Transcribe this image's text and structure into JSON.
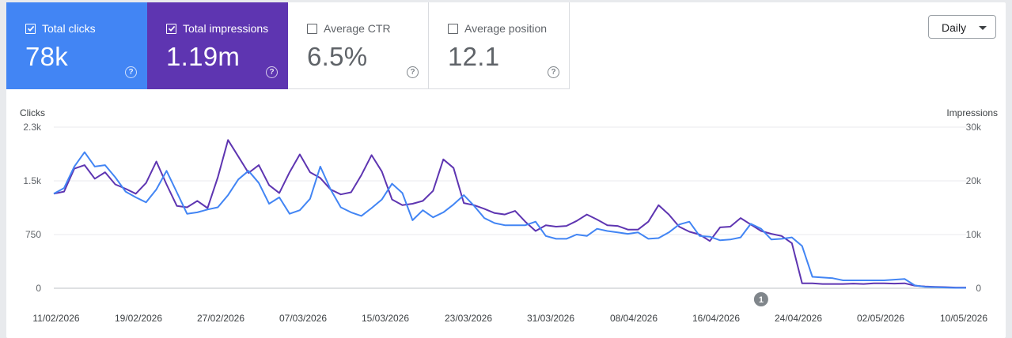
{
  "metrics": [
    {
      "label": "Total clicks",
      "value": "78k",
      "checked": true,
      "bg": "#4285f4",
      "fg": "#ffffff"
    },
    {
      "label": "Total impressions",
      "value": "1.19m",
      "checked": true,
      "bg": "#5e35b1",
      "fg": "#ffffff"
    },
    {
      "label": "Average CTR",
      "value": "6.5%",
      "checked": false,
      "bg": "#ffffff",
      "fg": "#5f6368"
    },
    {
      "label": "Average position",
      "value": "12.1",
      "checked": false,
      "bg": "#ffffff",
      "fg": "#5f6368"
    }
  ],
  "help_icon": "help-circle-icon",
  "checkbox_icon": "check-icon",
  "period_select": {
    "value": "Daily",
    "icon": "arrow-drop-down-icon"
  },
  "chart_data": {
    "type": "line",
    "ylabel_left": "Clicks",
    "ylabel_right": "Impressions",
    "yticks_left": [
      "2.3k",
      "1.5k",
      "750",
      "0"
    ],
    "yticks_right": [
      "30k",
      "20k",
      "10k",
      "0"
    ],
    "ylim_left": [
      0,
      2250
    ],
    "ylim_right": [
      0,
      30000
    ],
    "grid": true,
    "x_tick_labels": [
      "11/02/2026",
      "19/02/2026",
      "27/02/2026",
      "07/03/2026",
      "15/03/2026",
      "23/03/2026",
      "31/03/2026",
      "08/04/2026",
      "16/04/2026",
      "24/04/2026",
      "02/05/2026",
      "10/05/2026"
    ],
    "annotation": {
      "label": "1",
      "x_index": 69
    },
    "series": [
      {
        "name": "Clicks",
        "axis": "left",
        "color": "#4285f4",
        "values": [
          1320,
          1400,
          1700,
          1900,
          1700,
          1720,
          1550,
          1350,
          1270,
          1200,
          1380,
          1640,
          1340,
          1040,
          1060,
          1100,
          1130,
          1300,
          1520,
          1640,
          1470,
          1180,
          1270,
          1040,
          1090,
          1250,
          1700,
          1380,
          1130,
          1060,
          1010,
          1120,
          1240,
          1460,
          1330,
          950,
          1090,
          990,
          1060,
          1170,
          1300,
          1150,
          980,
          910,
          880,
          880,
          880,
          930,
          730,
          690,
          690,
          750,
          730,
          830,
          800,
          780,
          760,
          780,
          690,
          700,
          780,
          890,
          930,
          730,
          720,
          670,
          680,
          710,
          900,
          830,
          680,
          690,
          710,
          590,
          160,
          150,
          140,
          110,
          110,
          110,
          110,
          110,
          120,
          130,
          40,
          20,
          15,
          10,
          5,
          5
        ]
      },
      {
        "name": "Impressions",
        "axis": "left",
        "color": "#5e35b1",
        "values": [
          1320,
          1350,
          1670,
          1720,
          1530,
          1620,
          1450,
          1390,
          1320,
          1470,
          1770,
          1450,
          1150,
          1130,
          1220,
          1120,
          1550,
          2070,
          1840,
          1610,
          1720,
          1440,
          1330,
          1620,
          1870,
          1620,
          1540,
          1380,
          1310,
          1340,
          1580,
          1860,
          1630,
          1240,
          1160,
          1180,
          1220,
          1360,
          1800,
          1680,
          1190,
          1160,
          1110,
          1050,
          1030,
          1080,
          930,
          800,
          880,
          860,
          870,
          940,
          1030,
          960,
          880,
          870,
          820,
          820,
          930,
          1160,
          1030,
          860,
          790,
          750,
          660,
          850,
          860,
          980,
          890,
          800,
          760,
          730,
          630,
          70,
          70,
          60,
          60,
          60,
          65,
          60,
          70,
          70,
          65,
          70,
          35,
          25,
          20,
          15,
          10,
          10
        ]
      }
    ]
  }
}
